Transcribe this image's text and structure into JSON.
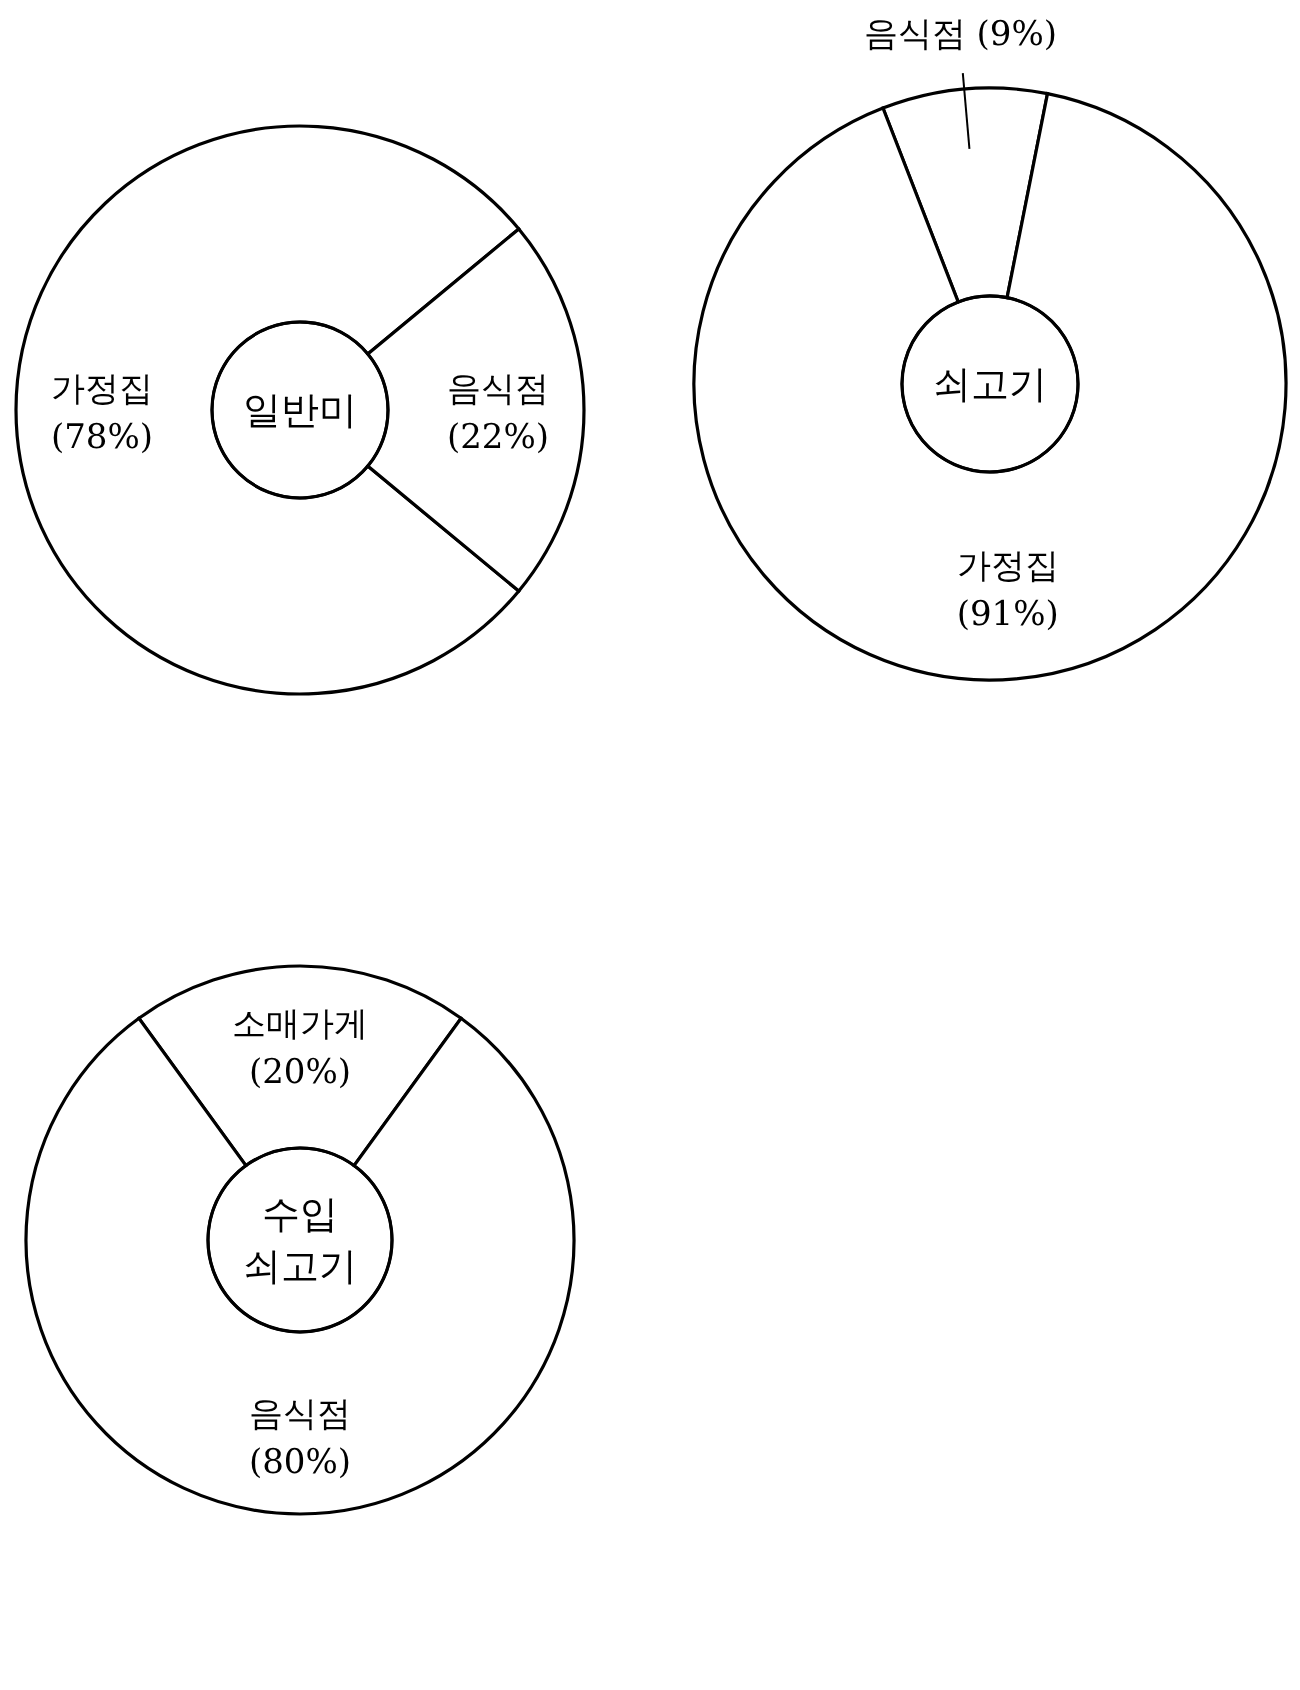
{
  "chart_data": [
    {
      "type": "donut",
      "title": "일반미",
      "categories": [
        "가정집",
        "음식점"
      ],
      "values": [
        78,
        22
      ],
      "value_labels": [
        "(78%)",
        "(22%)"
      ],
      "colors": [
        "#ffffff",
        "#ffffff"
      ]
    },
    {
      "type": "donut",
      "title": "쇠고기",
      "categories": [
        "음식점",
        "가정집"
      ],
      "values": [
        9,
        91
      ],
      "value_labels": [
        "(9%)",
        "(91%)"
      ],
      "colors": [
        "#ffffff",
        "#ffffff"
      ]
    },
    {
      "type": "donut",
      "title": "수입 쇠고기",
      "categories": [
        "소매가게",
        "음식점"
      ],
      "values": [
        20,
        80
      ],
      "value_labels": [
        "(20%)",
        "(80%)"
      ],
      "colors": [
        "#ffffff",
        "#ffffff"
      ]
    }
  ]
}
